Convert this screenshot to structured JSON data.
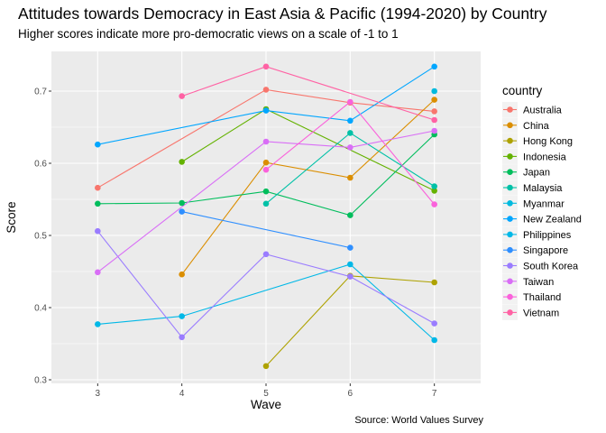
{
  "chart_data": {
    "type": "line",
    "title": "Attitudes towards Democracy in East Asia & Pacific (1994-2020) by Country",
    "subtitle": "Higher scores indicate more pro-democratic views on a scale of -1 to 1",
    "caption": "Source: World Values Survey",
    "xlabel": "Wave",
    "ylabel": "Score",
    "x_ticks": [
      3,
      4,
      5,
      6,
      7
    ],
    "y_ticks": [
      0.3,
      0.4,
      0.5,
      0.6,
      0.7
    ],
    "y_tick_labels": [
      "0.3",
      "0.4",
      "0.5",
      "0.6",
      "0.7"
    ],
    "xlim": [
      2.45,
      7.55
    ],
    "ylim": [
      0.295,
      0.755
    ],
    "grid": true,
    "legend_title": "country",
    "legend_position": "right",
    "series": [
      {
        "name": "Australia",
        "color": "#F8766D",
        "points": [
          [
            3,
            0.566
          ],
          [
            5,
            0.702
          ],
          [
            6,
            0.684
          ],
          [
            7,
            0.672
          ]
        ]
      },
      {
        "name": "China",
        "color": "#DB8E00",
        "points": [
          [
            4,
            0.446
          ],
          [
            5,
            0.601
          ],
          [
            6,
            0.58
          ],
          [
            7,
            0.688
          ]
        ]
      },
      {
        "name": "Hong Kong",
        "color": "#AEA200",
        "points": [
          [
            5,
            0.319
          ],
          [
            6,
            0.444
          ],
          [
            7,
            0.435
          ]
        ]
      },
      {
        "name": "Indonesia",
        "color": "#64B200",
        "points": [
          [
            4,
            0.602
          ],
          [
            5,
            0.675
          ],
          [
            7,
            0.562
          ]
        ]
      },
      {
        "name": "Japan",
        "color": "#00BD5C",
        "points": [
          [
            3,
            0.544
          ],
          [
            4,
            0.545
          ],
          [
            5,
            0.561
          ],
          [
            6,
            0.528
          ],
          [
            7,
            0.64
          ]
        ]
      },
      {
        "name": "Malaysia",
        "color": "#00C1A7",
        "points": [
          [
            5,
            0.544
          ],
          [
            6,
            0.642
          ],
          [
            7,
            0.568
          ]
        ]
      },
      {
        "name": "Myanmar",
        "color": "#00BADE",
        "points": [
          [
            7,
            0.7
          ]
        ]
      },
      {
        "name": "New Zealand",
        "color": "#00A6FF",
        "points": [
          [
            3,
            0.626
          ],
          [
            5,
            0.673
          ],
          [
            6,
            0.659
          ],
          [
            7,
            0.734
          ]
        ]
      },
      {
        "name": "Philippines",
        "color": "#00B8E7",
        "points": [
          [
            3,
            0.377
          ],
          [
            4,
            0.388
          ],
          [
            6,
            0.46
          ],
          [
            7,
            0.355
          ]
        ]
      },
      {
        "name": "Singapore",
        "color": "#2F8FFF",
        "points": [
          [
            4,
            0.533
          ],
          [
            6,
            0.483
          ]
        ]
      },
      {
        "name": "South Korea",
        "color": "#9A7CFF",
        "points": [
          [
            3,
            0.506
          ],
          [
            4,
            0.359
          ],
          [
            5,
            0.474
          ],
          [
            6,
            0.443
          ],
          [
            7,
            0.378
          ]
        ]
      },
      {
        "name": "Taiwan",
        "color": "#D96EF6",
        "points": [
          [
            3,
            0.449
          ],
          [
            5,
            0.63
          ],
          [
            6,
            0.622
          ],
          [
            7,
            0.645
          ]
        ]
      },
      {
        "name": "Thailand",
        "color": "#FA62DB",
        "points": [
          [
            5,
            0.591
          ],
          [
            6,
            0.685
          ],
          [
            7,
            0.543
          ]
        ]
      },
      {
        "name": "Vietnam",
        "color": "#FF62A4",
        "points": [
          [
            4,
            0.693
          ],
          [
            5,
            0.734
          ],
          [
            7,
            0.66
          ]
        ]
      }
    ]
  }
}
